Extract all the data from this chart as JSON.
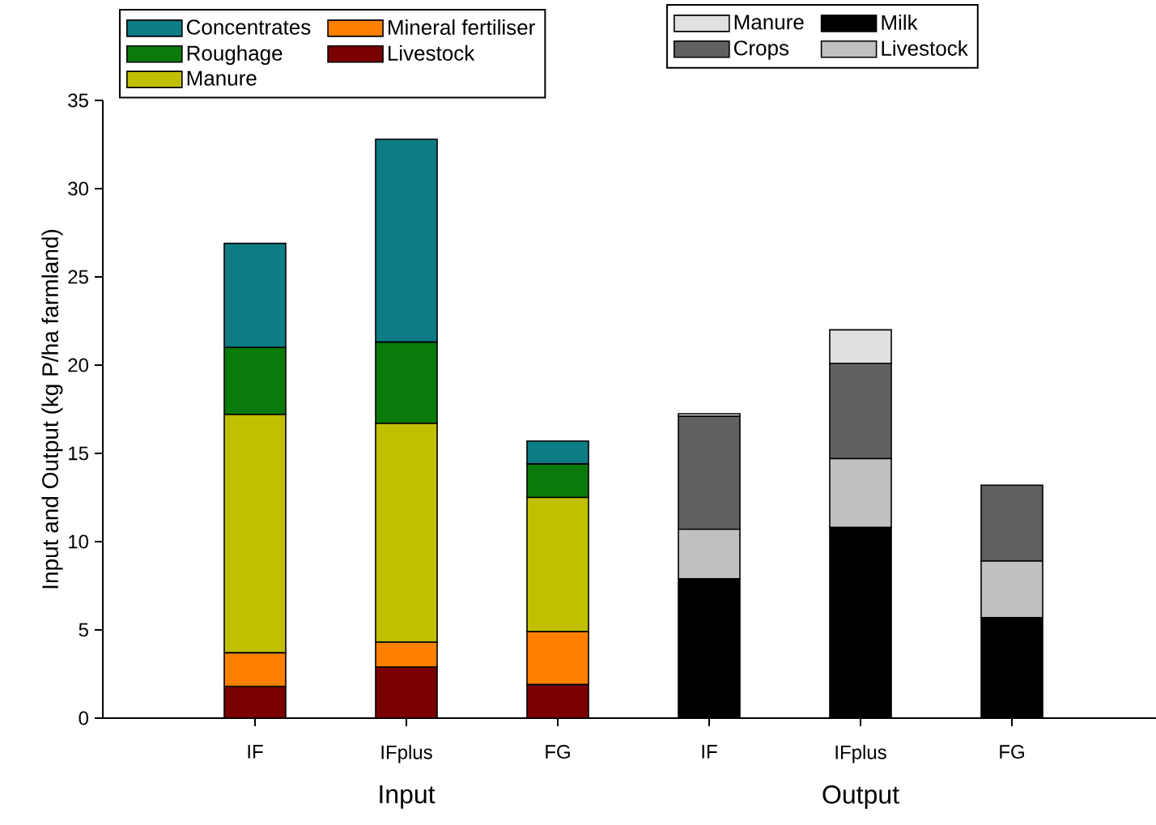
{
  "chart_data": {
    "type": "bar",
    "stacked": true,
    "ylabel": "Input and Output (kg P/ha farmland)",
    "categories": [
      "IF",
      "IFplus",
      "FG",
      "IF",
      "IFplus",
      "FG"
    ],
    "ylim": [
      0,
      35
    ],
    "yticks": [
      0,
      5,
      10,
      15,
      20,
      25,
      30,
      35
    ],
    "legend": "top",
    "annotations": [
      "Input",
      "Output"
    ],
    "series": [
      {
        "name": "Livestock",
        "color": "#7a0000",
        "values": [
          1.8,
          2.9,
          1.9,
          null,
          null,
          null
        ]
      },
      {
        "name": "Mineral fertiliser",
        "color": "#ff8000",
        "values": [
          1.9,
          1.4,
          3.0,
          null,
          null,
          null
        ]
      },
      {
        "name": "Manure",
        "color": "#c0c000",
        "values": [
          13.5,
          12.4,
          7.6,
          null,
          null,
          null
        ]
      },
      {
        "name": "Roughage",
        "color": "#0a7a0a",
        "values": [
          3.8,
          4.6,
          1.9,
          null,
          null,
          null
        ]
      },
      {
        "name": "Concentrates",
        "color": "#0e7c85",
        "values": [
          5.9,
          11.5,
          1.3,
          null,
          null,
          null
        ]
      },
      {
        "name": "Milk",
        "color": "#000000",
        "values": [
          null,
          null,
          null,
          7.9,
          10.8,
          5.7
        ]
      },
      {
        "name": "Livestock",
        "color": "#c0c0c0",
        "values": [
          null,
          null,
          null,
          2.8,
          3.9,
          3.2
        ]
      },
      {
        "name": "Crops",
        "color": "#606060",
        "values": [
          null,
          null,
          null,
          6.4,
          5.4,
          4.3
        ]
      },
      {
        "name": "Manure",
        "color": "#e0e0e0",
        "values": [
          null,
          null,
          null,
          0.15,
          1.9,
          null
        ]
      }
    ]
  }
}
